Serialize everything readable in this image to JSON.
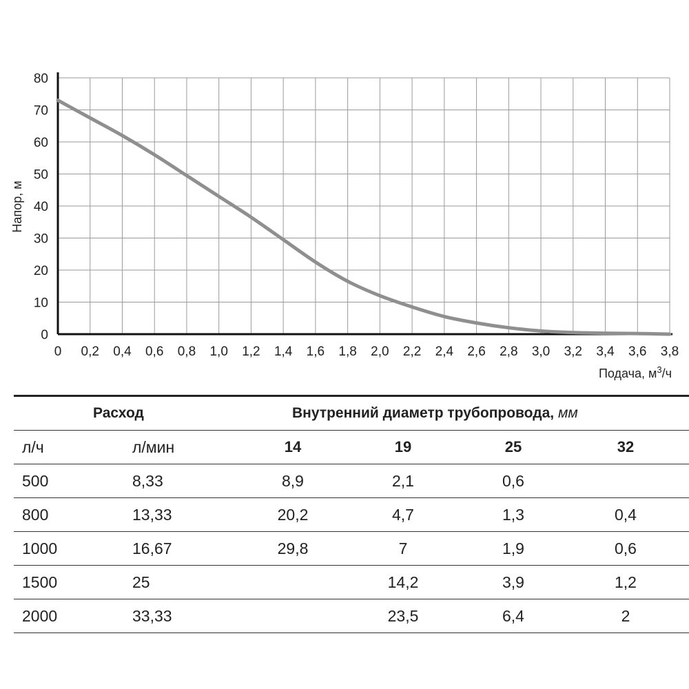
{
  "chart_data": {
    "type": "line",
    "xlabel": "Подача, м³/ч",
    "ylabel": "Напор, м",
    "xlim": [
      0,
      3.8
    ],
    "ylim": [
      0,
      80
    ],
    "grid": true,
    "x_ticks": [
      "0",
      "0,2",
      "0,4",
      "0,6",
      "0,8",
      "1,0",
      "1,2",
      "1,4",
      "1,6",
      "1,8",
      "2,0",
      "2,2",
      "2,4",
      "2,6",
      "2,8",
      "3,0",
      "3,2",
      "3,4",
      "3,6",
      "3,8"
    ],
    "y_ticks": [
      "0",
      "10",
      "20",
      "30",
      "40",
      "50",
      "60",
      "70",
      "80"
    ],
    "series": [
      {
        "x": [
          0,
          0.2,
          0.4,
          0.6,
          0.8,
          1.0,
          1.2,
          1.4,
          1.6,
          1.8,
          2.0,
          2.2,
          2.4,
          2.6,
          2.8,
          3.0,
          3.2,
          3.4,
          3.6,
          3.8
        ],
        "y": [
          73,
          67.5,
          62,
          56,
          49.5,
          43,
          36.5,
          29.5,
          22.5,
          16.5,
          12,
          8.5,
          5.5,
          3.5,
          2,
          1,
          0.5,
          0.3,
          0.2,
          0
        ]
      }
    ],
    "line_color": "#8f8f8f"
  },
  "table": {
    "header": {
      "flow": "Расход",
      "diameter": "Внутренний диаметр трубопровода,",
      "diameter_unit": "мм"
    },
    "subheader": [
      "л/ч",
      "л/мин",
      "14",
      "19",
      "25",
      "32"
    ],
    "rows": [
      [
        "500",
        "8,33",
        "8,9",
        "2,1",
        "0,6",
        ""
      ],
      [
        "800",
        "13,33",
        "20,2",
        "4,7",
        "1,3",
        "0,4"
      ],
      [
        "1000",
        "16,67",
        "29,8",
        "7",
        "1,9",
        "0,6"
      ],
      [
        "1500",
        "25",
        "",
        "14,2",
        "3,9",
        "1,2"
      ],
      [
        "2000",
        "33,33",
        "",
        "23,5",
        "6,4",
        "2"
      ]
    ]
  }
}
